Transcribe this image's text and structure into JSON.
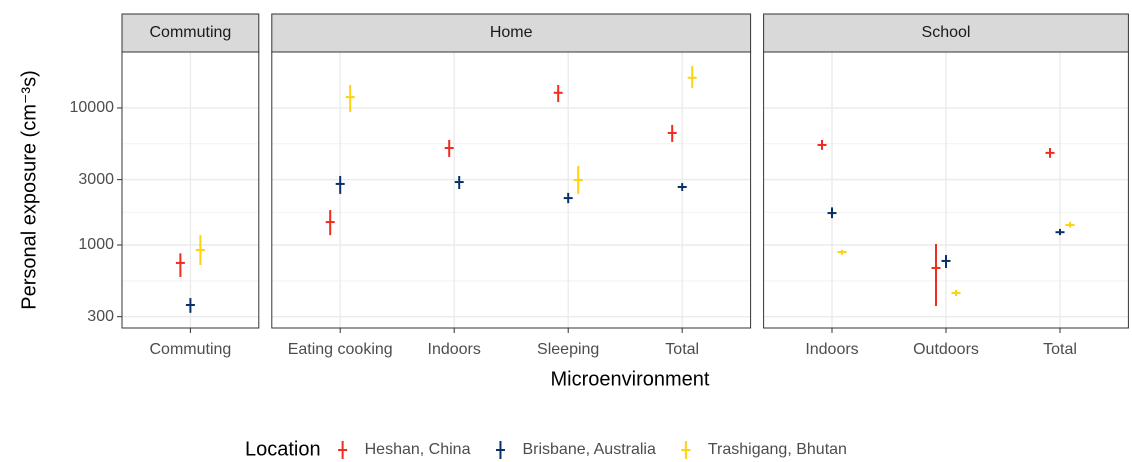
{
  "chart_data": {
    "type": "errorbar",
    "y_label": "Personal exposure (cm⁻³s)",
    "x_label": "Microenvironment",
    "legend_title": "Location",
    "log_y": true,
    "grid": true,
    "ylim": [
      248,
      25600
    ],
    "yticks": [
      300,
      1000,
      3000,
      10000
    ],
    "series": [
      {
        "name": "Heshan, China",
        "color": "#ee2c1f"
      },
      {
        "name": "Brisbane, Australia",
        "color": "#08306b"
      },
      {
        "name": "Trashigang, Bhutan",
        "color": "#fdd20e"
      }
    ],
    "facets": [
      {
        "title": "Commuting",
        "categories": [
          "Commuting"
        ],
        "series": [
          {
            "values": [
              740
            ],
            "low": [
              585
            ],
            "high": [
              870
            ]
          },
          {
            "values": [
              365
            ],
            "low": [
              320
            ],
            "high": [
              410
            ]
          },
          {
            "values": [
              920
            ],
            "low": [
              715
            ],
            "high": [
              1180
            ]
          }
        ]
      },
      {
        "title": "Home",
        "categories": [
          "Eating cooking",
          "Indoors",
          "Sleeping",
          "Total"
        ],
        "series": [
          {
            "values": [
              1470,
              5100,
              12900,
              6570
            ],
            "low": [
              1180,
              4390,
              11050,
              5650
            ],
            "high": [
              1800,
              5840,
              14700,
              7520
            ]
          },
          {
            "values": [
              2790,
              2880,
              2200,
              2650
            ],
            "low": [
              2360,
              2560,
              2020,
              2480
            ],
            "high": [
              3190,
              3190,
              2400,
              2830
            ]
          },
          {
            "values": [
              12000,
              null,
              2980,
              16600
            ],
            "low": [
              9330,
              null,
              2360,
              14000
            ],
            "high": [
              14700,
              null,
              3770,
              20200
            ]
          }
        ]
      },
      {
        "title": "School",
        "categories": [
          "Indoors",
          "Outdoors",
          "Total"
        ],
        "series": [
          {
            "values": [
              5370,
              680,
              4700
            ],
            "low": [
              4950,
              359,
              4330
            ],
            "high": [
              5840,
              1017,
              5100
            ]
          },
          {
            "values": [
              1710,
              765,
              1240
            ],
            "low": [
              1570,
              680,
              1180
            ],
            "high": [
              1880,
              845,
              1310
            ]
          },
          {
            "values": [
              890,
              447,
              1400
            ],
            "low": [
              850,
              425,
              1340
            ],
            "high": [
              920,
              470,
              1470
            ]
          }
        ]
      }
    ]
  }
}
